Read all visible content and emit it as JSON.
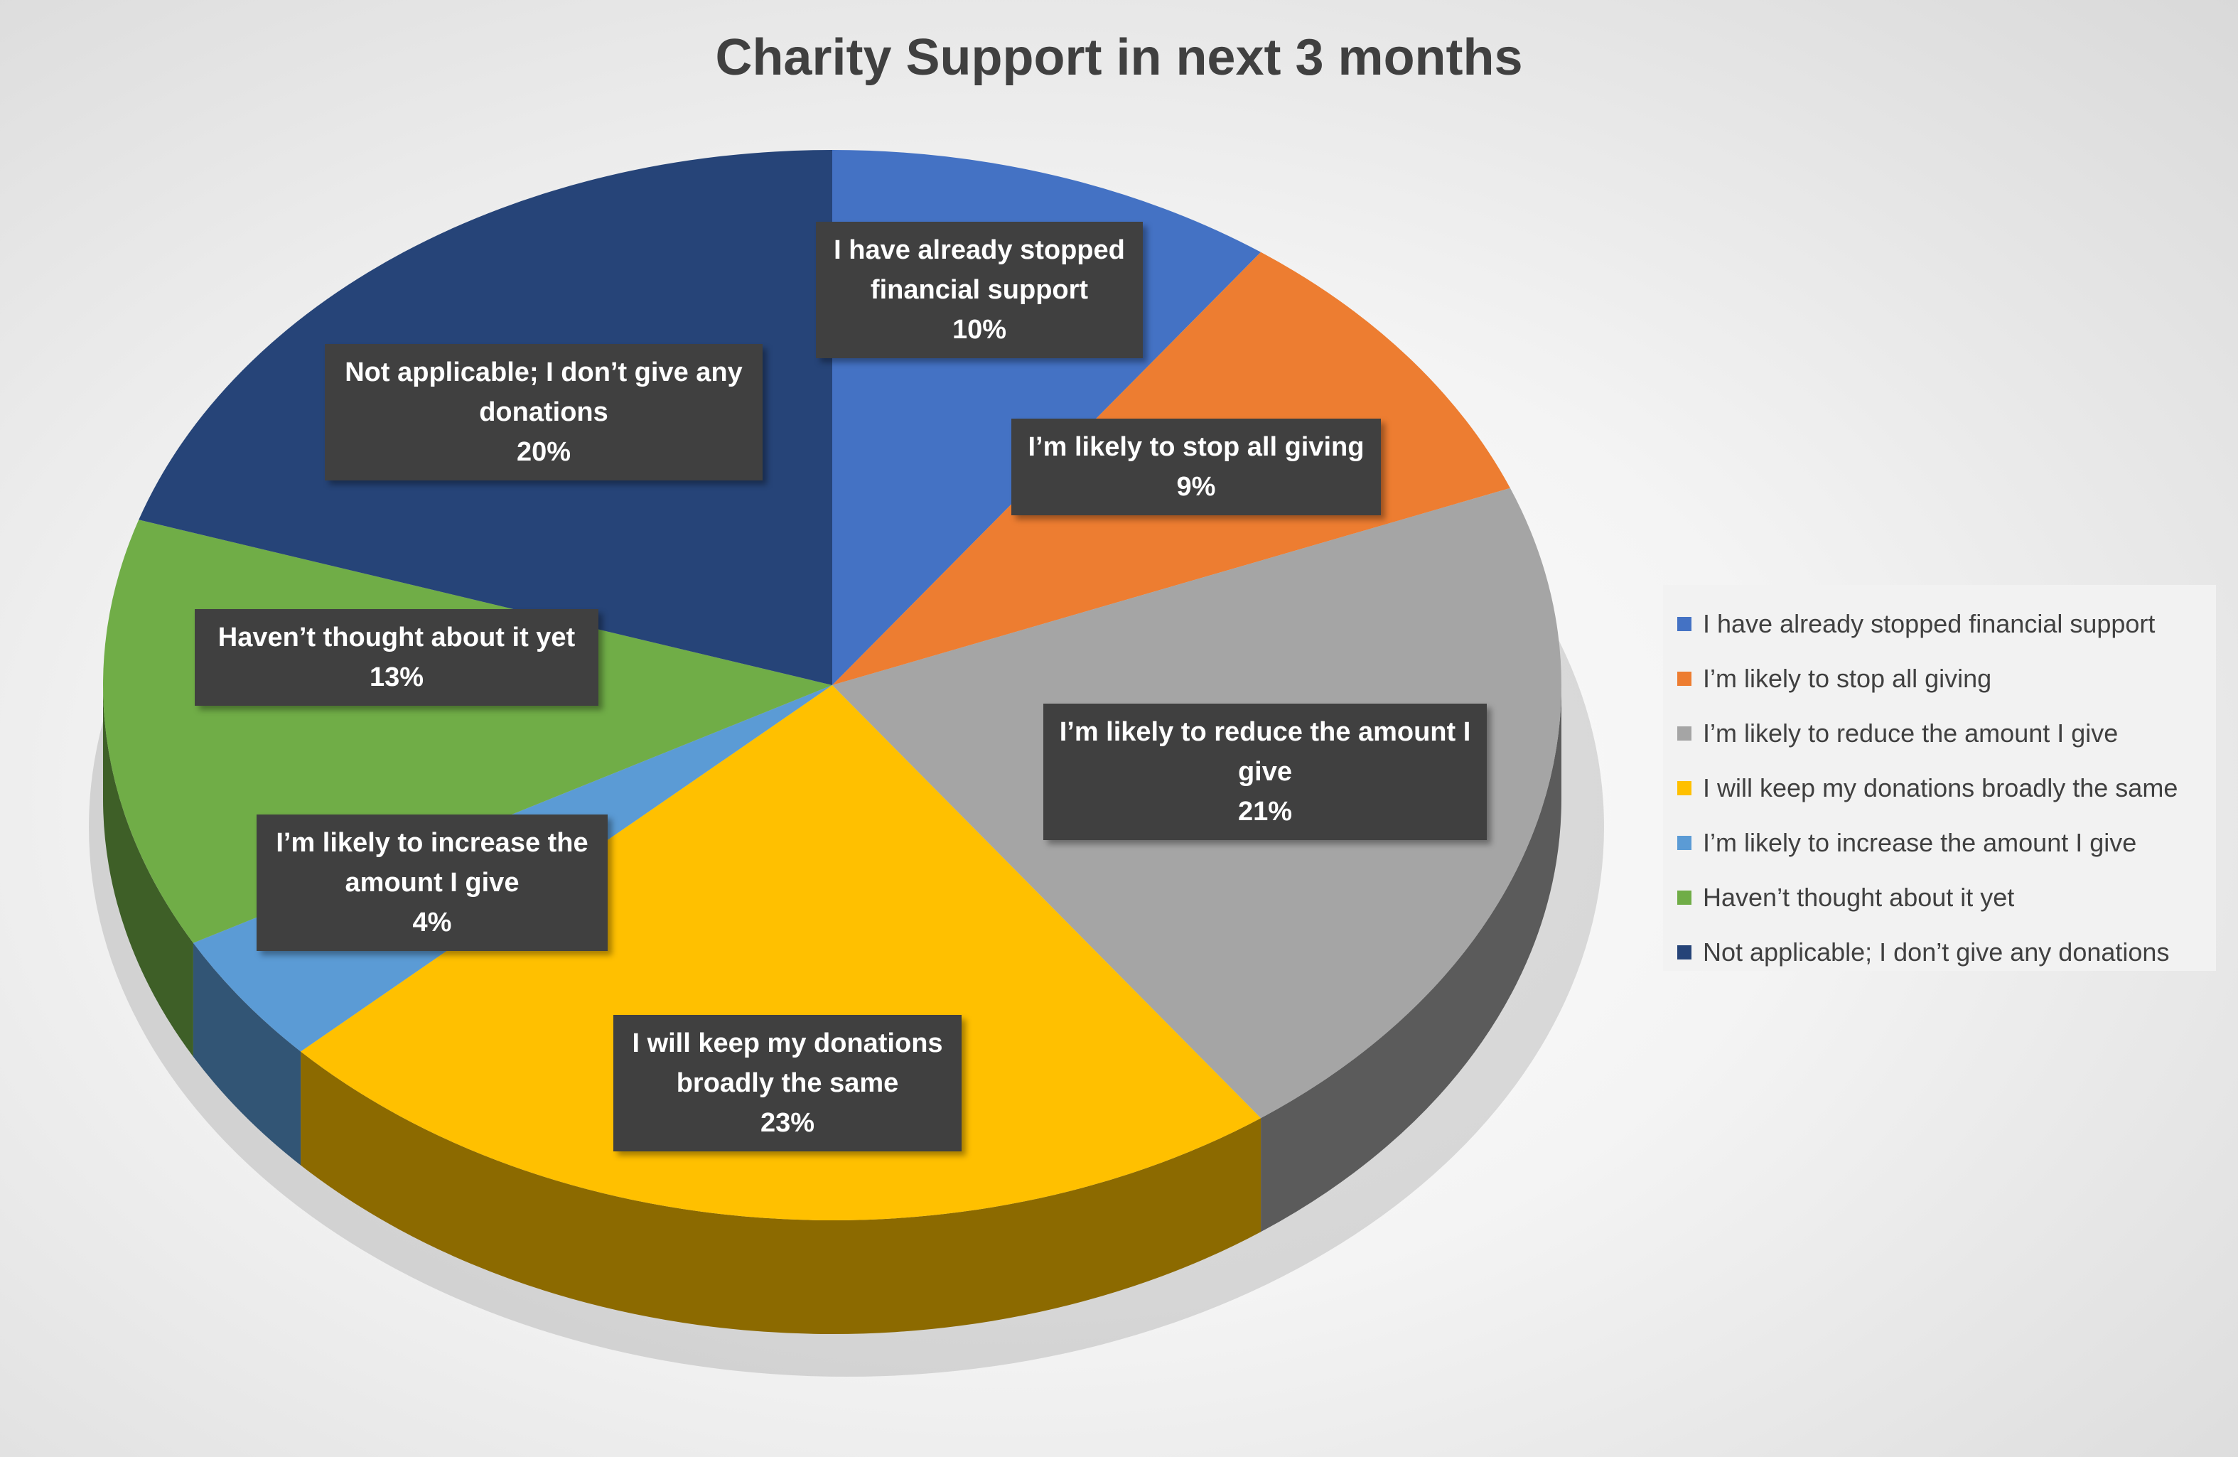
{
  "chart_data": {
    "type": "pie",
    "title": "Charity Support in next 3 months",
    "categories": [
      "I have already stopped financial support",
      "I’m likely to stop all giving",
      "I’m likely to reduce the amount I give",
      "I will keep my donations broadly the same",
      "I’m likely to increase the amount I give",
      "Haven’t thought about it yet",
      "Not applicable; I don’t give any donations"
    ],
    "values": [
      10,
      9,
      21,
      23,
      4,
      13,
      20
    ],
    "value_labels": [
      "10%",
      "9%",
      "21%",
      "23%",
      "4%",
      "13%",
      "20%"
    ],
    "colors": [
      "#4472c4",
      "#ed7d31",
      "#a5a5a5",
      "#ffc000",
      "#5b9bd5",
      "#70ad47",
      "#264478"
    ],
    "legend": "right"
  }
}
